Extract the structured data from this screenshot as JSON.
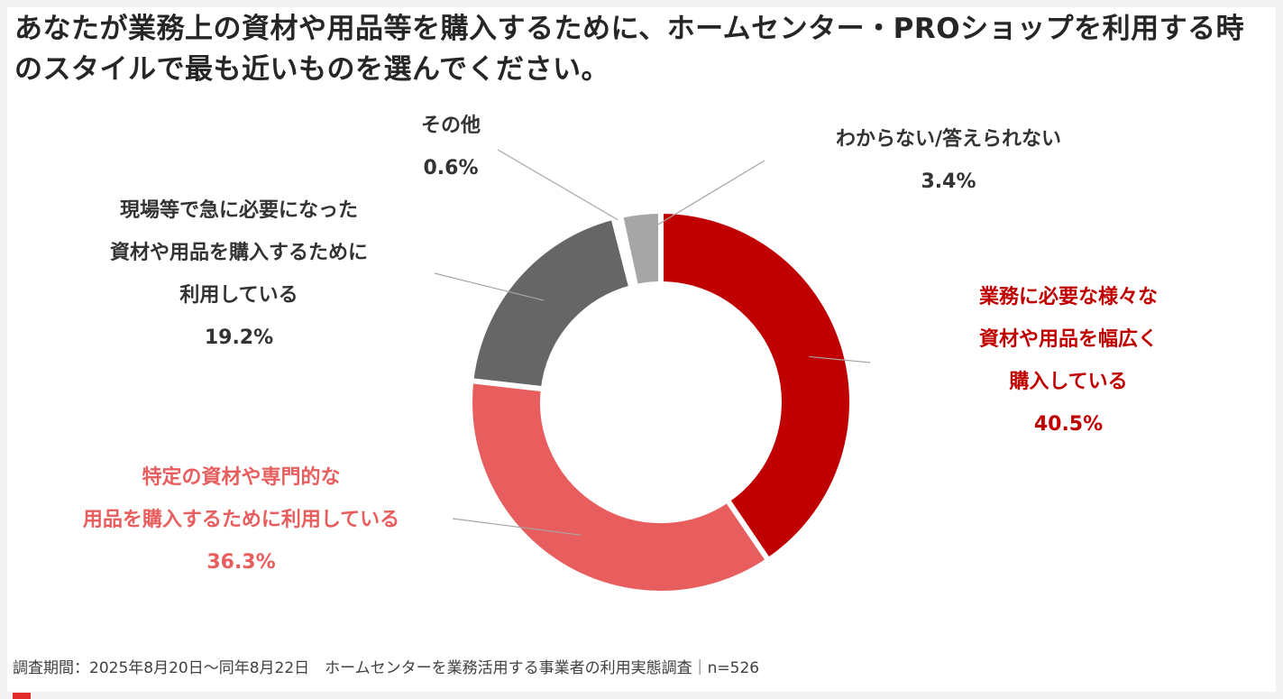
{
  "title": "あなたが業務上の資材や用品等を購入するために、ホームセンター・PROショップを利用する時のスタイルで最も近いものを選んでください。",
  "chart_data": {
    "type": "pie",
    "donut": true,
    "series": [
      {
        "name": "業務に必要な様々な資材や用品を幅広く購入している",
        "label_lines": [
          "業務に必要な様々な",
          "資材や用品を幅広く",
          "購入している"
        ],
        "value": 40.5,
        "label": "40.5%",
        "color": "#c00000",
        "text_color": "#c00000"
      },
      {
        "name": "特定の資材や専門的な用品を購入するために利用している",
        "label_lines": [
          "特定の資材や専門的な",
          "用品を購入するために利用している"
        ],
        "value": 36.3,
        "label": "36.3%",
        "color": "#e85d5d",
        "text_color": "#e85d5d"
      },
      {
        "name": "現場等で急に必要になった資材や用品を購入するために利用している",
        "label_lines": [
          "現場等で急に必要になった",
          "資材や用品を購入するために",
          "利用している"
        ],
        "value": 19.2,
        "label": "19.2%",
        "color": "#666666",
        "text_color": "#333333"
      },
      {
        "name": "その他",
        "label_lines": [
          "その他"
        ],
        "value": 0.6,
        "label": "0.6%",
        "color": "#ffffff",
        "text_color": "#333333"
      },
      {
        "name": "わからない/答えられない",
        "label_lines": [
          "わからない/答えられない"
        ],
        "value": 3.4,
        "label": "3.4%",
        "color": "#a6a6a6",
        "text_color": "#333333"
      }
    ]
  },
  "footer": "調査期間：2025年8月20日～同年8月22日　ホームセンターを業務活用する事業者の利用実態調査｜n=526"
}
